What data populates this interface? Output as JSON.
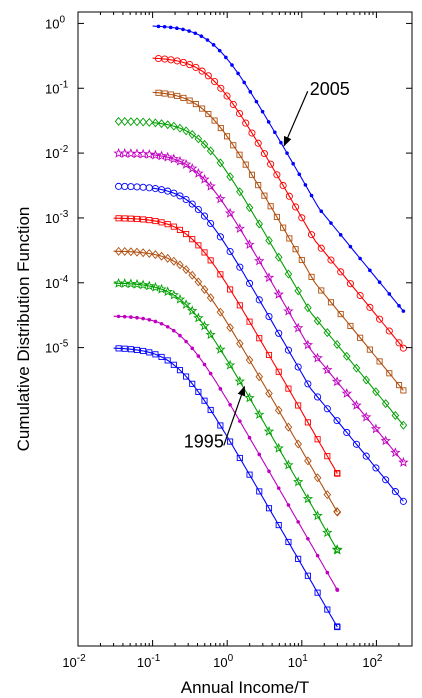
{
  "chart_data": {
    "type": "scatter",
    "title": "",
    "xlabel": "Annual Income/T",
    "ylabel": "Cumulative Distribution Function",
    "x_scale": "log",
    "y_scale": "log",
    "xlim": [
      0.01,
      300
    ],
    "ylim": [
      2.5e-10,
      1.5
    ],
    "grid": false,
    "x_ticks": [
      {
        "value": 0.01,
        "base": "10",
        "exp": "-2"
      },
      {
        "value": 0.1,
        "base": "10",
        "exp": "-1"
      },
      {
        "value": 1,
        "base": "10",
        "exp": "0"
      },
      {
        "value": 10,
        "base": "10",
        "exp": "1"
      },
      {
        "value": 100,
        "base": "10",
        "exp": "2"
      }
    ],
    "y_ticks": [
      {
        "value": 1,
        "base": "10",
        "exp": "0"
      },
      {
        "value": 0.1,
        "base": "10",
        "exp": "-1"
      },
      {
        "value": 0.01,
        "base": "10",
        "exp": "-2"
      },
      {
        "value": 0.001,
        "base": "10",
        "exp": "-3"
      },
      {
        "value": 0.0001,
        "base": "10",
        "exp": "-4"
      },
      {
        "value": 1e-05,
        "base": "10",
        "exp": "-5"
      }
    ],
    "series": [
      {
        "color": "#0000ff",
        "marker": "dot",
        "offset": 0.93,
        "sx": 0.66,
        "dx": [
          0.12,
          13.5
        ],
        "xmax": 230,
        "kink": 17
      },
      {
        "color": "#ff0000",
        "marker": "circle",
        "offset": 0.3,
        "sx": 0.58,
        "dx": [
          0.12,
          10
        ],
        "xmax": 230,
        "kink": 15
      },
      {
        "color": "#b05010",
        "marker": "square",
        "offset": 0.09,
        "sx": 0.5,
        "dx": [
          0.12,
          10
        ],
        "xmax": 230,
        "kink": 15
      },
      {
        "color": "#00a000",
        "marker": "diamond",
        "offset": 0.031,
        "sx": 0.44,
        "dx": [
          0.035,
          0.6
        ],
        "xmax": 230,
        "kink": 13
      },
      {
        "color": "#c000c0",
        "marker": "star",
        "offset": 0.01,
        "sx": 0.4,
        "dx": [
          0.035,
          0.6
        ],
        "xmax": 230,
        "kink": 13
      },
      {
        "color": "#0000ff",
        "marker": "circle",
        "offset": 0.0031,
        "sx": 0.36,
        "dx": [
          0.035,
          0.6
        ],
        "xmax": 230,
        "kink": 13
      },
      {
        "color": "#ff0000",
        "marker": "square",
        "offset": 0.001,
        "sx": 0.32,
        "dx": [
          0.035,
          0.6
        ],
        "xmax": 30
      },
      {
        "color": "#b05010",
        "marker": "diamond",
        "offset": 0.00031,
        "sx": 0.29,
        "dx": [
          0.035,
          0.6
        ],
        "xmax": 30
      },
      {
        "color": "#00a000",
        "marker": "star",
        "offset": 0.0001,
        "sx": 0.26,
        "dx": [
          0.035,
          0.6
        ],
        "xmax": 30
      },
      {
        "color": "#c000c0",
        "marker": "dot",
        "offset": 3.1e-05,
        "sx": 0.23,
        "dx": [
          0.035,
          0.6
        ],
        "xmax": 30
      },
      {
        "color": "#0000ff",
        "marker": "square",
        "offset": 1e-05,
        "sx": 0.21,
        "dx": [
          0.035,
          0.6
        ],
        "xmax": 30
      }
    ],
    "annotations": [
      {
        "text": "2005",
        "arrow_from": [
          12,
          0.09
        ],
        "arrow_to": [
          5.8,
          0.013
        ]
      },
      {
        "text": "1995",
        "arrow_from": [
          0.9,
          3.1e-07
        ],
        "arrow_to": [
          1.7,
          2.5e-06
        ]
      }
    ]
  }
}
